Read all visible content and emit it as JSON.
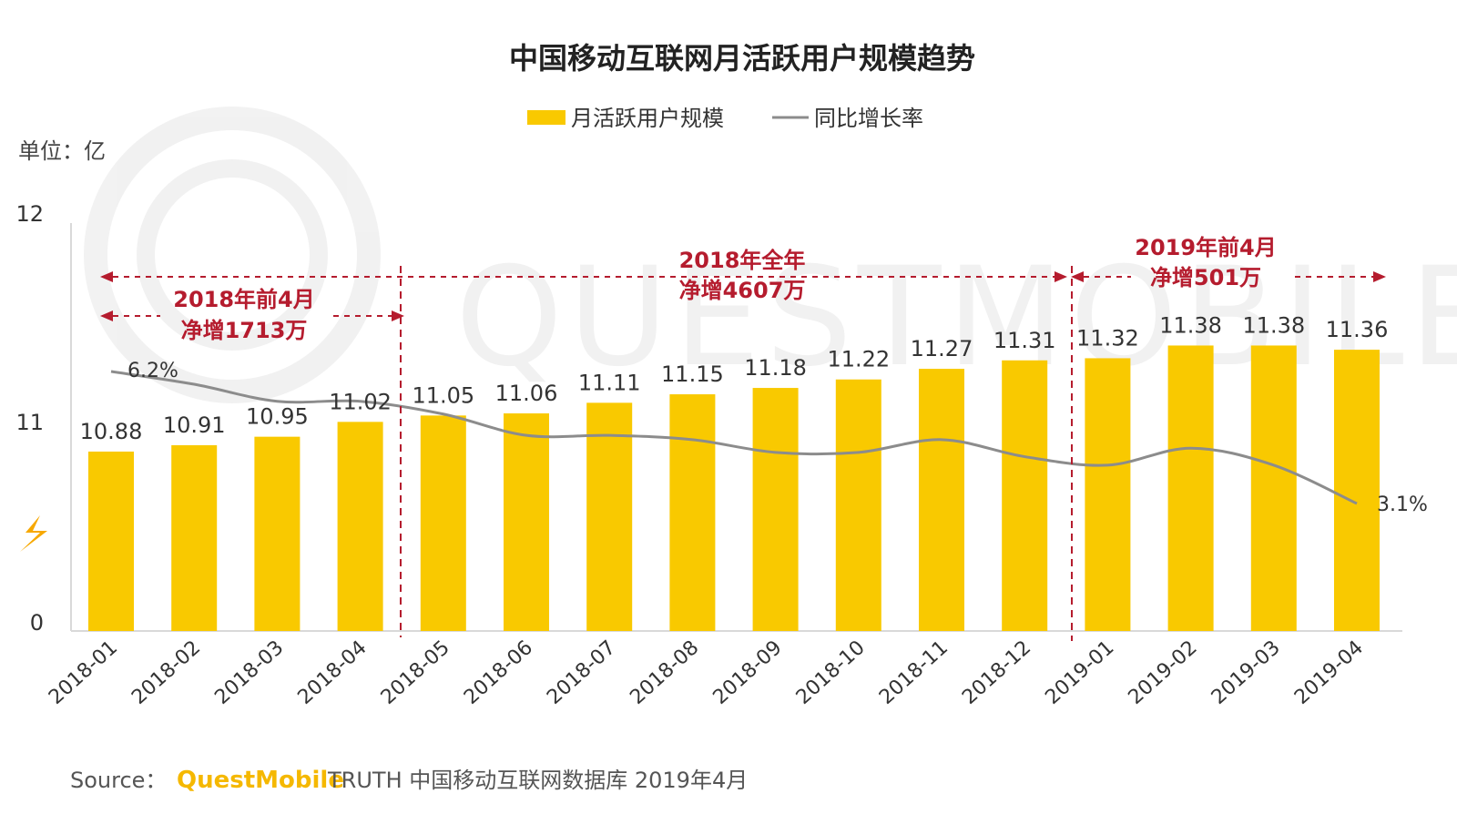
{
  "chart_data": {
    "type": "bar",
    "title": "中国移动互联网月活跃用户规模趋势",
    "unit_label": "单位：亿",
    "categories": [
      "2018-01",
      "2018-02",
      "2018-03",
      "2018-04",
      "2018-05",
      "2018-06",
      "2018-07",
      "2018-08",
      "2018-09",
      "2018-10",
      "2018-11",
      "2018-12",
      "2019-01",
      "2019-02",
      "2019-03",
      "2019-04"
    ],
    "series": [
      {
        "name": "月活跃用户规模",
        "type": "bar",
        "values": [
          10.88,
          10.91,
          10.95,
          11.02,
          11.05,
          11.06,
          11.11,
          11.15,
          11.18,
          11.22,
          11.27,
          11.31,
          11.32,
          11.38,
          11.38,
          11.36
        ],
        "value_labels": [
          "10.88",
          "10.91",
          "10.95",
          "11.02",
          "11.05",
          "11.06",
          "11.11",
          "11.15",
          "11.18",
          "11.22",
          "11.27",
          "11.31",
          "11.32",
          "11.38",
          "11.38",
          "11.36"
        ],
        "color": "#f9c900"
      },
      {
        "name": "同比增长率",
        "type": "line",
        "unit": "%",
        "values": [
          6.2,
          5.9,
          5.5,
          5.5,
          5.2,
          4.7,
          4.7,
          4.6,
          4.3,
          4.3,
          4.6,
          4.2,
          4.0,
          4.4,
          4.0,
          3.1
        ],
        "point_labels": {
          "0": "6.2%",
          "15": "3.1%"
        },
        "color": "#8c8c8c"
      }
    ],
    "y_ticks": [
      "12",
      "11",
      "0"
    ],
    "ylim": [
      0,
      12
    ],
    "axis_break": true,
    "annotations": [
      {
        "lines": [
          "2018年前4月",
          "净增1713万"
        ],
        "from": "2018-01",
        "to": "2018-04"
      },
      {
        "lines": [
          "2018年全年",
          "净增4607万"
        ],
        "from": "2018-01",
        "to": "2018-12"
      },
      {
        "lines": [
          "2019年前4月",
          "净增501万"
        ],
        "from": "2019-01",
        "to": "2019-04"
      }
    ],
    "annotation_color": "#b51c2e",
    "legend_position": "top-center",
    "grid": false
  },
  "source": {
    "prefix": "Source：",
    "brand": "QuestMobile",
    "text": "TRUTH 中国移动互联网数据库 2019年4月"
  },
  "watermark": "QUESTMOBILE"
}
